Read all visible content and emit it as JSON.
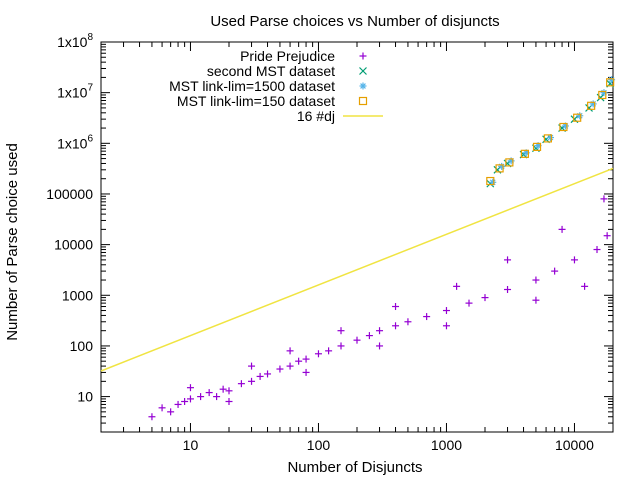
{
  "chart_data": {
    "type": "scatter",
    "title": "Used Parse choices vs Number of disjuncts",
    "xlabel": "Number of Disjuncts",
    "ylabel": "Number of Parse choice used",
    "xscale": "log",
    "yscale": "log",
    "xlim": [
      2,
      20000
    ],
    "ylim": [
      2,
      100000000
    ],
    "grid": false,
    "legend_position": "top-right",
    "x_ticks": [
      {
        "value": 10,
        "label": "10"
      },
      {
        "value": 100,
        "label": "100"
      },
      {
        "value": 1000,
        "label": "1000"
      },
      {
        "value": 10000,
        "label": "10000"
      }
    ],
    "y_ticks": [
      {
        "value": 10,
        "label": "10",
        "base": "10",
        "exp": ""
      },
      {
        "value": 100,
        "label": "100",
        "base": "100",
        "exp": ""
      },
      {
        "value": 1000,
        "label": "1000",
        "base": "1000",
        "exp": ""
      },
      {
        "value": 10000,
        "label": "10000",
        "base": "10000",
        "exp": ""
      },
      {
        "value": 100000,
        "label": "100000",
        "base": "100000",
        "exp": ""
      },
      {
        "value": 1000000,
        "label": "1x10^6",
        "base": "1x10",
        "exp": "6"
      },
      {
        "value": 10000000,
        "label": "1x10^7",
        "base": "1x10",
        "exp": "7"
      },
      {
        "value": 100000000,
        "label": "1x10^8",
        "base": "1x10",
        "exp": "8"
      }
    ],
    "series": [
      {
        "name": "Pride Prejudice",
        "marker": "plus",
        "color": "#9400d3",
        "points": [
          [
            5,
            4
          ],
          [
            6,
            6
          ],
          [
            7,
            5
          ],
          [
            8,
            7
          ],
          [
            9,
            8
          ],
          [
            10,
            9
          ],
          [
            12,
            10
          ],
          [
            14,
            12
          ],
          [
            16,
            10
          ],
          [
            18,
            14
          ],
          [
            20,
            13
          ],
          [
            25,
            18
          ],
          [
            30,
            20
          ],
          [
            35,
            25
          ],
          [
            40,
            28
          ],
          [
            50,
            35
          ],
          [
            60,
            40
          ],
          [
            70,
            50
          ],
          [
            80,
            55
          ],
          [
            100,
            70
          ],
          [
            120,
            80
          ],
          [
            150,
            100
          ],
          [
            200,
            130
          ],
          [
            250,
            160
          ],
          [
            300,
            200
          ],
          [
            400,
            250
          ],
          [
            500,
            300
          ],
          [
            700,
            380
          ],
          [
            1000,
            500
          ],
          [
            1500,
            700
          ],
          [
            2000,
            900
          ],
          [
            3000,
            1300
          ],
          [
            5000,
            2000
          ],
          [
            7000,
            3000
          ],
          [
            10000,
            5000
          ],
          [
            15000,
            8000
          ],
          [
            18000,
            15000
          ],
          [
            10,
            15
          ],
          [
            30,
            40
          ],
          [
            60,
            80
          ],
          [
            150,
            200
          ],
          [
            400,
            600
          ],
          [
            1200,
            1500
          ],
          [
            3000,
            5000
          ],
          [
            8000,
            20000
          ],
          [
            17000,
            80000
          ],
          [
            20,
            8
          ],
          [
            80,
            30
          ],
          [
            300,
            100
          ],
          [
            1000,
            250
          ],
          [
            5000,
            800
          ],
          [
            12000,
            1500
          ]
        ]
      },
      {
        "name": "second MST dataset",
        "marker": "cross",
        "color": "#009e73",
        "points": [
          [
            2200,
            160000
          ],
          [
            2500,
            300000
          ],
          [
            3000,
            400000
          ],
          [
            4000,
            600000
          ],
          [
            5000,
            800000
          ],
          [
            6000,
            1200000
          ],
          [
            8000,
            2000000
          ],
          [
            10000,
            3000000
          ],
          [
            13000,
            5000000
          ],
          [
            16000,
            8000000
          ],
          [
            19000,
            15000000
          ]
        ]
      },
      {
        "name": "MST link-lim=1500 dataset",
        "marker": "star",
        "color": "#56b4e9",
        "points": [
          [
            2300,
            170000
          ],
          [
            2700,
            350000
          ],
          [
            3200,
            450000
          ],
          [
            4200,
            650000
          ],
          [
            5200,
            900000
          ],
          [
            6500,
            1300000
          ],
          [
            8500,
            2200000
          ],
          [
            11000,
            3500000
          ],
          [
            14000,
            6000000
          ],
          [
            17000,
            10000000
          ],
          [
            19500,
            18000000
          ]
        ]
      },
      {
        "name": "MST link-lim=150 dataset",
        "marker": "square",
        "color": "#e69f00",
        "points": [
          [
            2200,
            180000
          ],
          [
            2600,
            320000
          ],
          [
            3100,
            420000
          ],
          [
            4100,
            620000
          ],
          [
            5100,
            850000
          ],
          [
            6200,
            1250000
          ],
          [
            8200,
            2100000
          ],
          [
            10500,
            3200000
          ],
          [
            13500,
            5500000
          ],
          [
            16500,
            9000000
          ],
          [
            19000,
            16000000
          ]
        ]
      },
      {
        "name": "16 #dj",
        "marker": "line",
        "color": "#f0e442",
        "formula": "y = 16 * x",
        "points": [
          [
            2,
            32
          ],
          [
            20000,
            320000
          ]
        ]
      }
    ]
  }
}
